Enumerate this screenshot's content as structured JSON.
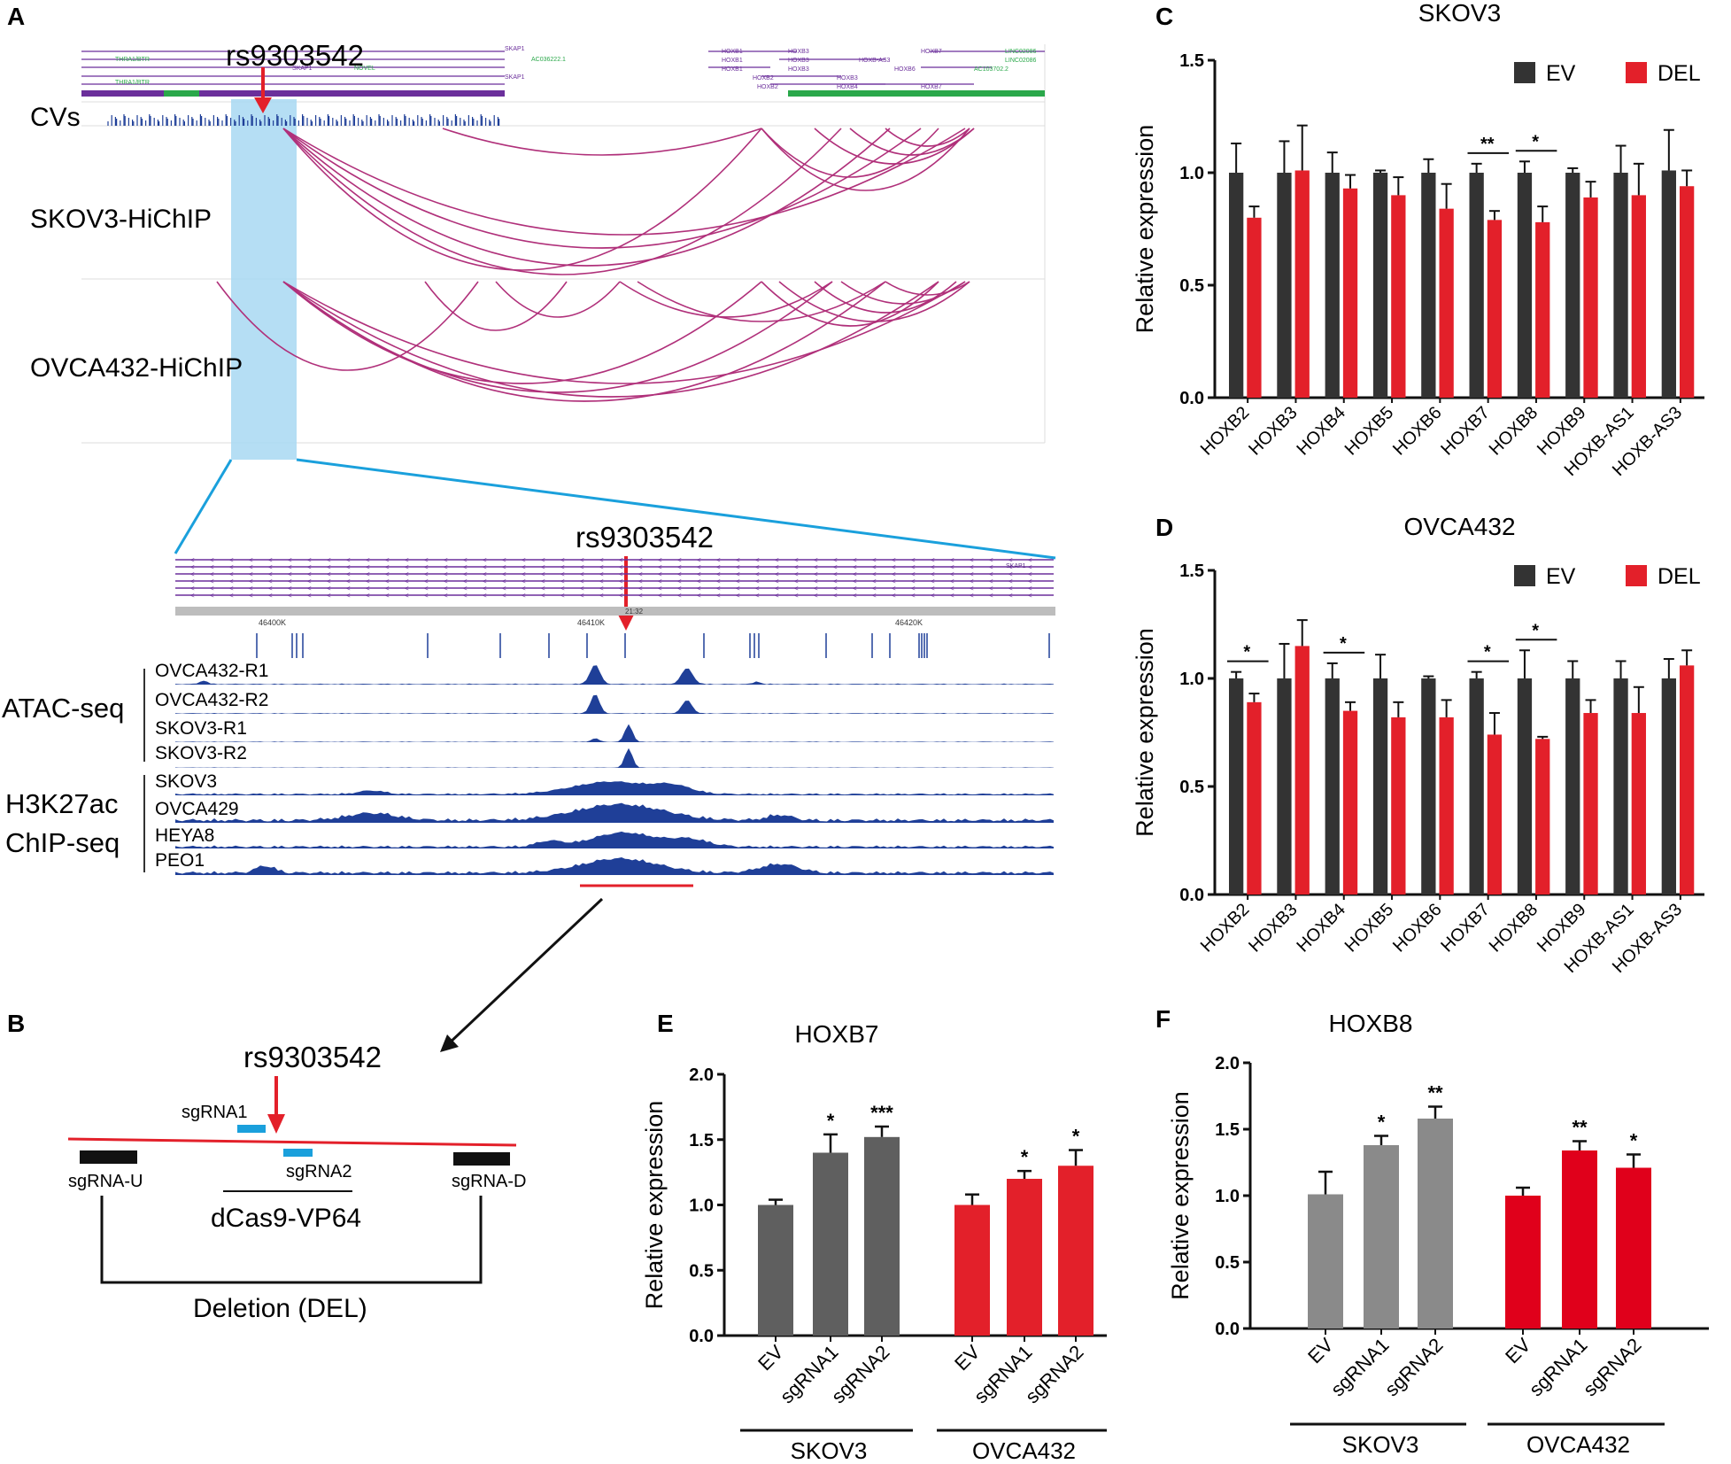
{
  "panels": {
    "A": "A",
    "B": "B",
    "C": "C",
    "D": "D",
    "E": "E",
    "F": "F"
  },
  "panel_a": {
    "snp": "rs9303542",
    "cvs_label": "CVs",
    "hichip_labels": [
      "SKOV3-HiChIP",
      "OVCA432-HiChIP"
    ],
    "genes_left": [
      "THRA1/BTR",
      "SKAP1",
      "AC036222.1",
      "NOVEL",
      "THRA1/BTR",
      "SKAP1",
      "SKAP1"
    ],
    "genes_right": [
      "HOXB1",
      "HOXB3",
      "HOXB7",
      "LINC02086",
      "HOXB1",
      "HOXB3",
      "HOXB-AS3",
      "LINC02086",
      "HOXB1",
      "HOXB3",
      "HOXB6",
      "AC103702.2",
      "HOXB2",
      "HOXB3",
      "HOXB2",
      "HOXB4",
      "HOXB7"
    ],
    "zoom_snp": "rs9303542",
    "ruler": [
      "46400K",
      "46410K",
      "46420K"
    ],
    "ruler_tick": "21:32",
    "zoom_gene": "SKAP1",
    "atac_group": "ATAC-seq",
    "atac_tracks": [
      "OVCA432-R1",
      "OVCA432-R2",
      "SKOV3-R1",
      "SKOV3-R2"
    ],
    "chip_group_1": "H3K27ac",
    "chip_group_2": "ChIP-seq",
    "chip_tracks": [
      "SKOV3",
      "OVCA429",
      "HEYA8",
      "PEO1"
    ]
  },
  "panel_b": {
    "snp": "rs9303542",
    "sgrna1": "sgRNA1",
    "sgrna2": "sgRNA2",
    "sgrna_u": "sgRNA-U",
    "sgrna_d": "sgRNA-D",
    "dcas9": "dCas9-VP64",
    "deletion": "Deletion (DEL)"
  },
  "colors": {
    "ev": "#333333",
    "del": "#e3202a",
    "skov3_bar": "#5f5f5f",
    "ovca_bar": "#e3202a",
    "f_skov3_bar": "#8a8a8a",
    "f_ovca_bar": "#e0001b",
    "arc": "#b0307a",
    "track": "#1f3f98",
    "highlight": "#a8d8f2",
    "zoom_line": "#1aa0dc"
  },
  "chart_data": [
    {
      "id": "C",
      "type": "bar",
      "title": "SKOV3",
      "ylabel": "Relative expression",
      "ylim": [
        0,
        1.5
      ],
      "yticks": [
        "0.0",
        "0.5",
        "1.0",
        "1.5"
      ],
      "categories": [
        "HOXB2",
        "HOXB3",
        "HOXB4",
        "HOXB5",
        "HOXB6",
        "HOXB7",
        "HOXB8",
        "HOXB9",
        "HOXB-AS1",
        "HOXB-AS3"
      ],
      "series": [
        {
          "name": "EV",
          "values": [
            1.0,
            1.0,
            1.0,
            1.0,
            1.0,
            1.0,
            1.0,
            1.0,
            1.0,
            1.01
          ],
          "errors": [
            0.13,
            0.14,
            0.09,
            0.01,
            0.06,
            0.04,
            0.05,
            0.02,
            0.12,
            0.18
          ]
        },
        {
          "name": "DEL",
          "values": [
            0.8,
            1.01,
            0.93,
            0.9,
            0.84,
            0.79,
            0.78,
            0.89,
            0.9,
            0.94
          ],
          "errors": [
            0.05,
            0.2,
            0.06,
            0.08,
            0.11,
            0.04,
            0.07,
            0.07,
            0.14,
            0.07
          ]
        }
      ],
      "significance": [
        {
          "category": "HOXB7",
          "label": "**"
        },
        {
          "category": "HOXB8",
          "label": "*"
        }
      ]
    },
    {
      "id": "D",
      "type": "bar",
      "title": "OVCA432",
      "ylabel": "Relative expression",
      "ylim": [
        0,
        1.5
      ],
      "yticks": [
        "0.0",
        "0.5",
        "1.0",
        "1.5"
      ],
      "categories": [
        "HOXB2",
        "HOXB3",
        "HOXB4",
        "HOXB5",
        "HOXB6",
        "HOXB7",
        "HOXB8",
        "HOXB9",
        "HOXB-AS1",
        "HOXB-AS3"
      ],
      "series": [
        {
          "name": "EV",
          "values": [
            1.0,
            1.0,
            1.0,
            1.0,
            1.0,
            1.0,
            1.0,
            1.0,
            1.0,
            1.0
          ],
          "errors": [
            0.03,
            0.16,
            0.07,
            0.11,
            0.01,
            0.03,
            0.13,
            0.08,
            0.08,
            0.09
          ]
        },
        {
          "name": "DEL",
          "values": [
            0.89,
            1.15,
            0.85,
            0.82,
            0.82,
            0.74,
            0.72,
            0.84,
            0.84,
            1.06
          ],
          "errors": [
            0.04,
            0.12,
            0.04,
            0.07,
            0.08,
            0.1,
            0.01,
            0.06,
            0.12,
            0.07
          ]
        }
      ],
      "significance": [
        {
          "category": "HOXB2",
          "label": "*"
        },
        {
          "category": "HOXB4",
          "label": "*"
        },
        {
          "category": "HOXB7",
          "label": "*"
        },
        {
          "category": "HOXB8",
          "label": "*"
        }
      ]
    },
    {
      "id": "E",
      "type": "bar",
      "title": "HOXB7",
      "ylabel": "Relative expression",
      "ylim": [
        0,
        2.0
      ],
      "yticks": [
        "0.0",
        "0.5",
        "1.0",
        "1.5",
        "2.0"
      ],
      "categories": [
        "EV",
        "sgRNA1",
        "sgRNA2",
        "EV",
        "sgRNA1",
        "sgRNA2"
      ],
      "groups": [
        "SKOV3",
        "OVCA432"
      ],
      "values": [
        1.0,
        1.4,
        1.52,
        1.0,
        1.2,
        1.3
      ],
      "errors": [
        0.04,
        0.14,
        0.08,
        0.08,
        0.06,
        0.12
      ],
      "significance": [
        "",
        "*",
        "***",
        "",
        "*",
        "*"
      ]
    },
    {
      "id": "F",
      "type": "bar",
      "title": "HOXB8",
      "ylabel": "Relative expression",
      "ylim": [
        0,
        2.0
      ],
      "yticks": [
        "0.0",
        "0.5",
        "1.0",
        "1.5",
        "2.0"
      ],
      "categories": [
        "EV",
        "sgRNA1",
        "sgRNA2",
        "EV",
        "sgRNA1",
        "sgRNA2"
      ],
      "groups": [
        "SKOV3",
        "OVCA432"
      ],
      "values": [
        1.01,
        1.38,
        1.58,
        1.0,
        1.34,
        1.21
      ],
      "errors": [
        0.17,
        0.07,
        0.09,
        0.06,
        0.07,
        0.1
      ],
      "significance": [
        "",
        "*",
        "**",
        "",
        "**",
        "*"
      ]
    }
  ],
  "legend": {
    "ev": "EV",
    "del": "DEL"
  }
}
